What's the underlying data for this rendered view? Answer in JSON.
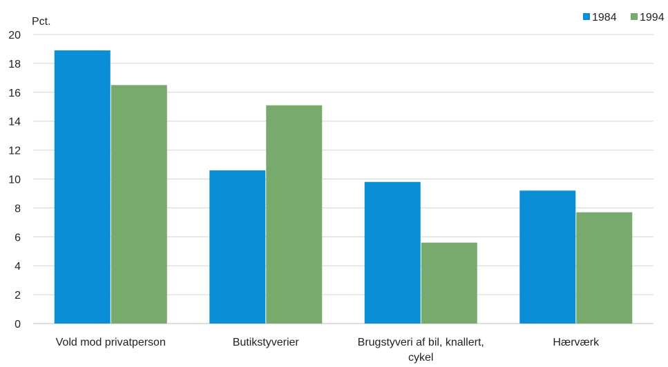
{
  "chart_data": {
    "type": "bar",
    "title": "",
    "xlabel": "",
    "ylabel": "Pct.",
    "categories": [
      "Vold mod privatperson",
      "Butikstyverier",
      "Brugstyveri af bil, knallert, cykel",
      "Hærværk"
    ],
    "category_lines": [
      [
        "Vold mod privatperson"
      ],
      [
        "Butikstyverier"
      ],
      [
        "Brugstyveri af bil, knallert,",
        "cykel"
      ],
      [
        "Hærværk"
      ]
    ],
    "series": [
      {
        "name": "1984",
        "color": "#0a8fd6",
        "values": [
          18.9,
          10.6,
          9.8,
          9.2
        ]
      },
      {
        "name": "1994",
        "color": "#78a96d",
        "values": [
          16.5,
          15.1,
          5.6,
          7.7
        ]
      }
    ],
    "ylim": [
      0,
      20
    ],
    "yticks": [
      0,
      2,
      4,
      6,
      8,
      10,
      12,
      14,
      16,
      18,
      20
    ],
    "grid": true,
    "legend_position": "top-right"
  }
}
